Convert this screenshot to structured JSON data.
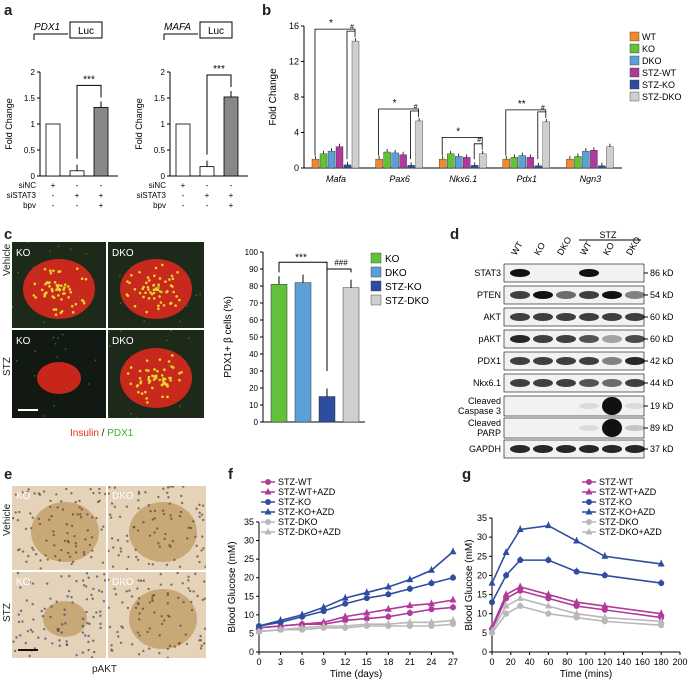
{
  "panels": {
    "a": "a",
    "b": "b",
    "c": "c",
    "d": "d",
    "e": "e",
    "f": "f",
    "g": "g"
  },
  "panel_a": {
    "charts": [
      {
        "gene": "PDX1",
        "luc": "Luc",
        "ylabel": "Fold Change",
        "yticks": [
          "0",
          "0.5",
          "1",
          "1.5",
          "2"
        ],
        "values": [
          1.0,
          0.1,
          1.32
        ],
        "sig": "***",
        "row_labels": [
          "siNC",
          "siSTAT3",
          "bpv"
        ],
        "row_values": [
          [
            "+",
            "-",
            "-"
          ],
          [
            "-",
            "+",
            "+"
          ],
          [
            "-",
            "-",
            "+"
          ]
        ]
      },
      {
        "gene": "MAFA",
        "luc": "Luc",
        "ylabel": "Fold Change",
        "yticks": [
          "0",
          "0.5",
          "1",
          "1.5",
          "2"
        ],
        "values": [
          1.0,
          0.18,
          1.52
        ],
        "sig": "***",
        "row_labels": [
          "siNC",
          "siSTAT3",
          "bpv"
        ],
        "row_values": [
          [
            "+",
            "-",
            "-"
          ],
          [
            "-",
            "+",
            "+"
          ],
          [
            "-",
            "-",
            "+"
          ]
        ]
      }
    ]
  },
  "chart_data": [
    {
      "type": "bar",
      "panel": "b",
      "ylabel": "Fold Change",
      "ylim": [
        0,
        16
      ],
      "yticks": [
        "0",
        "4",
        "8",
        "12",
        "16"
      ],
      "categories": [
        "Mafa",
        "Pax6",
        "Nkx6.1",
        "Pdx1",
        "Ngn3"
      ],
      "series": [
        {
          "name": "WT",
          "color": "#f08a2e",
          "values": [
            1.0,
            1.0,
            1.0,
            1.0,
            1.0
          ]
        },
        {
          "name": "KO",
          "color": "#62c13a",
          "values": [
            1.6,
            1.8,
            1.6,
            1.2,
            1.3
          ]
        },
        {
          "name": "DKO",
          "color": "#5a9fd6",
          "values": [
            1.9,
            1.7,
            1.3,
            1.4,
            1.9
          ]
        },
        {
          "name": "STZ-WT",
          "color": "#b03a9b",
          "values": [
            2.4,
            1.5,
            1.2,
            1.2,
            2.0
          ]
        },
        {
          "name": "STZ-KO",
          "color": "#2f4da0",
          "values": [
            0.35,
            0.3,
            0.3,
            0.25,
            0.25
          ]
        },
        {
          "name": "STZ-DKO",
          "color": "#cfcfcf",
          "values": [
            14.3,
            5.3,
            1.6,
            5.2,
            2.4
          ]
        }
      ],
      "sig_left": [
        "*",
        "*",
        "*",
        "**"
      ],
      "sig_right": [
        "#",
        "#",
        "#",
        "#"
      ]
    },
    {
      "type": "bar",
      "panel": "c",
      "ylabel": "PDX1+ β cells (%)",
      "ylim": [
        0,
        100
      ],
      "yticks": [
        "0",
        "10",
        "20",
        "30",
        "40",
        "50",
        "60",
        "70",
        "80",
        "90",
        "100"
      ],
      "categories": [
        "KO",
        "DKO",
        "STZ-KO",
        "STZ-DKO"
      ],
      "values": [
        81,
        82,
        15,
        79
      ],
      "colors": [
        "#62c13a",
        "#5a9fd6",
        "#2f4da0",
        "#cfcfcf"
      ],
      "sig": [
        "***",
        "###"
      ]
    },
    {
      "type": "line",
      "panel": "f",
      "xlabel": "Time (days)",
      "ylabel": "Blood Glucose (mM)",
      "xlim": [
        0,
        27
      ],
      "ylim": [
        0,
        35
      ],
      "xticks": [
        "0",
        "3",
        "6",
        "9",
        "12",
        "15",
        "18",
        "21",
        "24",
        "27"
      ],
      "yticks": [
        "0",
        "5",
        "10",
        "15",
        "20",
        "25",
        "30",
        "35"
      ],
      "x": [
        0,
        3,
        6,
        9,
        12,
        15,
        18,
        21,
        24,
        27
      ],
      "series": [
        {
          "name": "STZ-WT",
          "color": "#b03a9b",
          "marker": "circle",
          "values": [
            6.5,
            7,
            7.5,
            7.5,
            8.5,
            9,
            9.5,
            10.5,
            11.5,
            12
          ]
        },
        {
          "name": "STZ-WT+AZD",
          "color": "#b03a9b",
          "marker": "triangle",
          "values": [
            6.5,
            7,
            7.5,
            8,
            9.5,
            10.5,
            11.5,
            12.5,
            13,
            14
          ]
        },
        {
          "name": "STZ-KO",
          "color": "#2f4da0",
          "marker": "circle",
          "values": [
            7,
            8,
            9.5,
            11,
            13,
            14.5,
            15.5,
            17,
            18.5,
            20
          ]
        },
        {
          "name": "STZ-KO+AZD",
          "color": "#2f4da0",
          "marker": "triangle",
          "values": [
            7,
            8.5,
            10,
            12,
            14.5,
            16,
            17.5,
            19.5,
            22,
            27
          ]
        },
        {
          "name": "STZ-DKO",
          "color": "#b8b8b8",
          "marker": "circle",
          "values": [
            5.5,
            6,
            6,
            6.5,
            6.5,
            7,
            7,
            7,
            7,
            7.5
          ]
        },
        {
          "name": "STZ-DKO+AZD",
          "color": "#b8b8b8",
          "marker": "triangle",
          "values": [
            5.5,
            6,
            6.5,
            7,
            7,
            7.5,
            7.5,
            8,
            8,
            8.5
          ]
        }
      ]
    },
    {
      "type": "line",
      "panel": "g",
      "xlabel": "Time (mins)",
      "ylabel": "Blood Glucose (mM)",
      "xlim": [
        0,
        200
      ],
      "ylim": [
        0,
        35
      ],
      "xticks": [
        "0",
        "20",
        "40",
        "60",
        "80",
        "100",
        "120",
        "140",
        "160",
        "180",
        "200"
      ],
      "yticks": [
        "0",
        "5",
        "10",
        "15",
        "20",
        "25",
        "30",
        "35"
      ],
      "x": [
        0,
        15,
        30,
        60,
        90,
        120,
        180
      ],
      "series": [
        {
          "name": "STZ-WT",
          "color": "#b03a9b",
          "marker": "circle",
          "values": [
            6,
            14,
            16,
            14,
            12,
            11,
            9
          ]
        },
        {
          "name": "STZ-WT+AZD",
          "color": "#b03a9b",
          "marker": "triangle",
          "values": [
            6.5,
            15,
            17,
            15,
            13,
            12,
            10
          ]
        },
        {
          "name": "STZ-KO",
          "color": "#2f4da0",
          "marker": "circle",
          "values": [
            13,
            20,
            24,
            24,
            21,
            20,
            18
          ]
        },
        {
          "name": "STZ-KO+AZD",
          "color": "#2f4da0",
          "marker": "triangle",
          "values": [
            18,
            26,
            32,
            33,
            29,
            25,
            23
          ]
        },
        {
          "name": "STZ-DKO",
          "color": "#b8b8b8",
          "marker": "circle",
          "values": [
            5,
            10,
            12,
            10,
            9,
            8,
            7
          ]
        },
        {
          "name": "STZ-DKO+AZD",
          "color": "#b8b8b8",
          "marker": "triangle",
          "values": [
            5.5,
            12,
            14,
            12,
            10,
            9,
            8
          ]
        }
      ]
    }
  ],
  "panel_c": {
    "images": [
      {
        "label": "KO",
        "bg": "#1d2a1a"
      },
      {
        "label": "DKO",
        "bg": "#1d2a1a"
      },
      {
        "label": "KO",
        "bg": "#121812"
      },
      {
        "label": "DKO",
        "bg": "#1d2a1a"
      }
    ],
    "row_labels": [
      "Vehicle",
      "STZ"
    ],
    "caption_red": "Insulin",
    "caption_sep": " / ",
    "caption_green": "PDX1"
  },
  "panel_d": {
    "columns": [
      "WT",
      "KO",
      "DKO",
      "WT",
      "KO",
      "DKO"
    ],
    "stz_label": "STZ",
    "rows": [
      {
        "name": "STAT3",
        "kd": "86 kD"
      },
      {
        "name": "PTEN",
        "kd": "54 kD"
      },
      {
        "name": "AKT",
        "kd": "60 kD"
      },
      {
        "name": "pAKT",
        "kd": "60 kD"
      },
      {
        "name": "PDX1",
        "kd": "42 kD"
      },
      {
        "name": "Nkx6.1",
        "kd": "44 kD"
      },
      {
        "name": "Cleaved\nCaspase 3",
        "kd": "19 kD"
      },
      {
        "name": "Cleaved\nPARP",
        "kd": "89 kD"
      },
      {
        "name": "GAPDH",
        "kd": "37 kD"
      }
    ]
  },
  "panel_e": {
    "images": [
      {
        "label": "KO"
      },
      {
        "label": "DKO"
      },
      {
        "label": "KO"
      },
      {
        "label": "DKO"
      }
    ],
    "row_labels": [
      "Vehicle",
      "STZ"
    ],
    "caption": "pAKT"
  }
}
